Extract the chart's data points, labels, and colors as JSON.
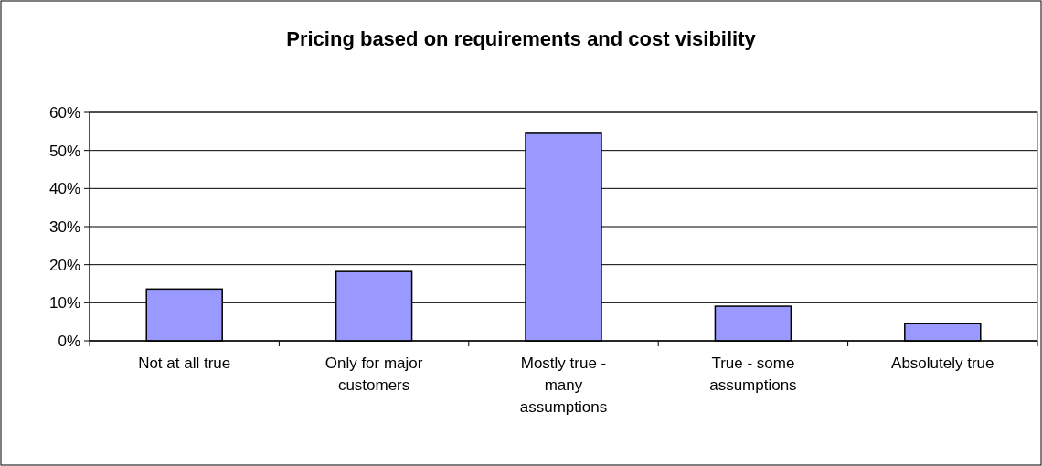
{
  "chart_data": {
    "type": "bar",
    "title": "Pricing based on requirements and cost visibility",
    "categories": [
      "Not at all true",
      "Only for major customers",
      "Mostly true - many assumptions",
      "True - some assumptions",
      "Absolutely true"
    ],
    "values": [
      13.6,
      18.2,
      54.5,
      9.1,
      4.5
    ],
    "color": "#9999ff",
    "ylim": [
      0,
      60
    ],
    "yticks": [
      {
        "value": 0,
        "label": "0%"
      },
      {
        "value": 10,
        "label": "10%"
      },
      {
        "value": 20,
        "label": "20%"
      },
      {
        "value": 30,
        "label": "30%"
      },
      {
        "value": 40,
        "label": "40%"
      },
      {
        "value": 50,
        "label": "50%"
      },
      {
        "value": 60,
        "label": "60%"
      }
    ],
    "grid": "y"
  }
}
